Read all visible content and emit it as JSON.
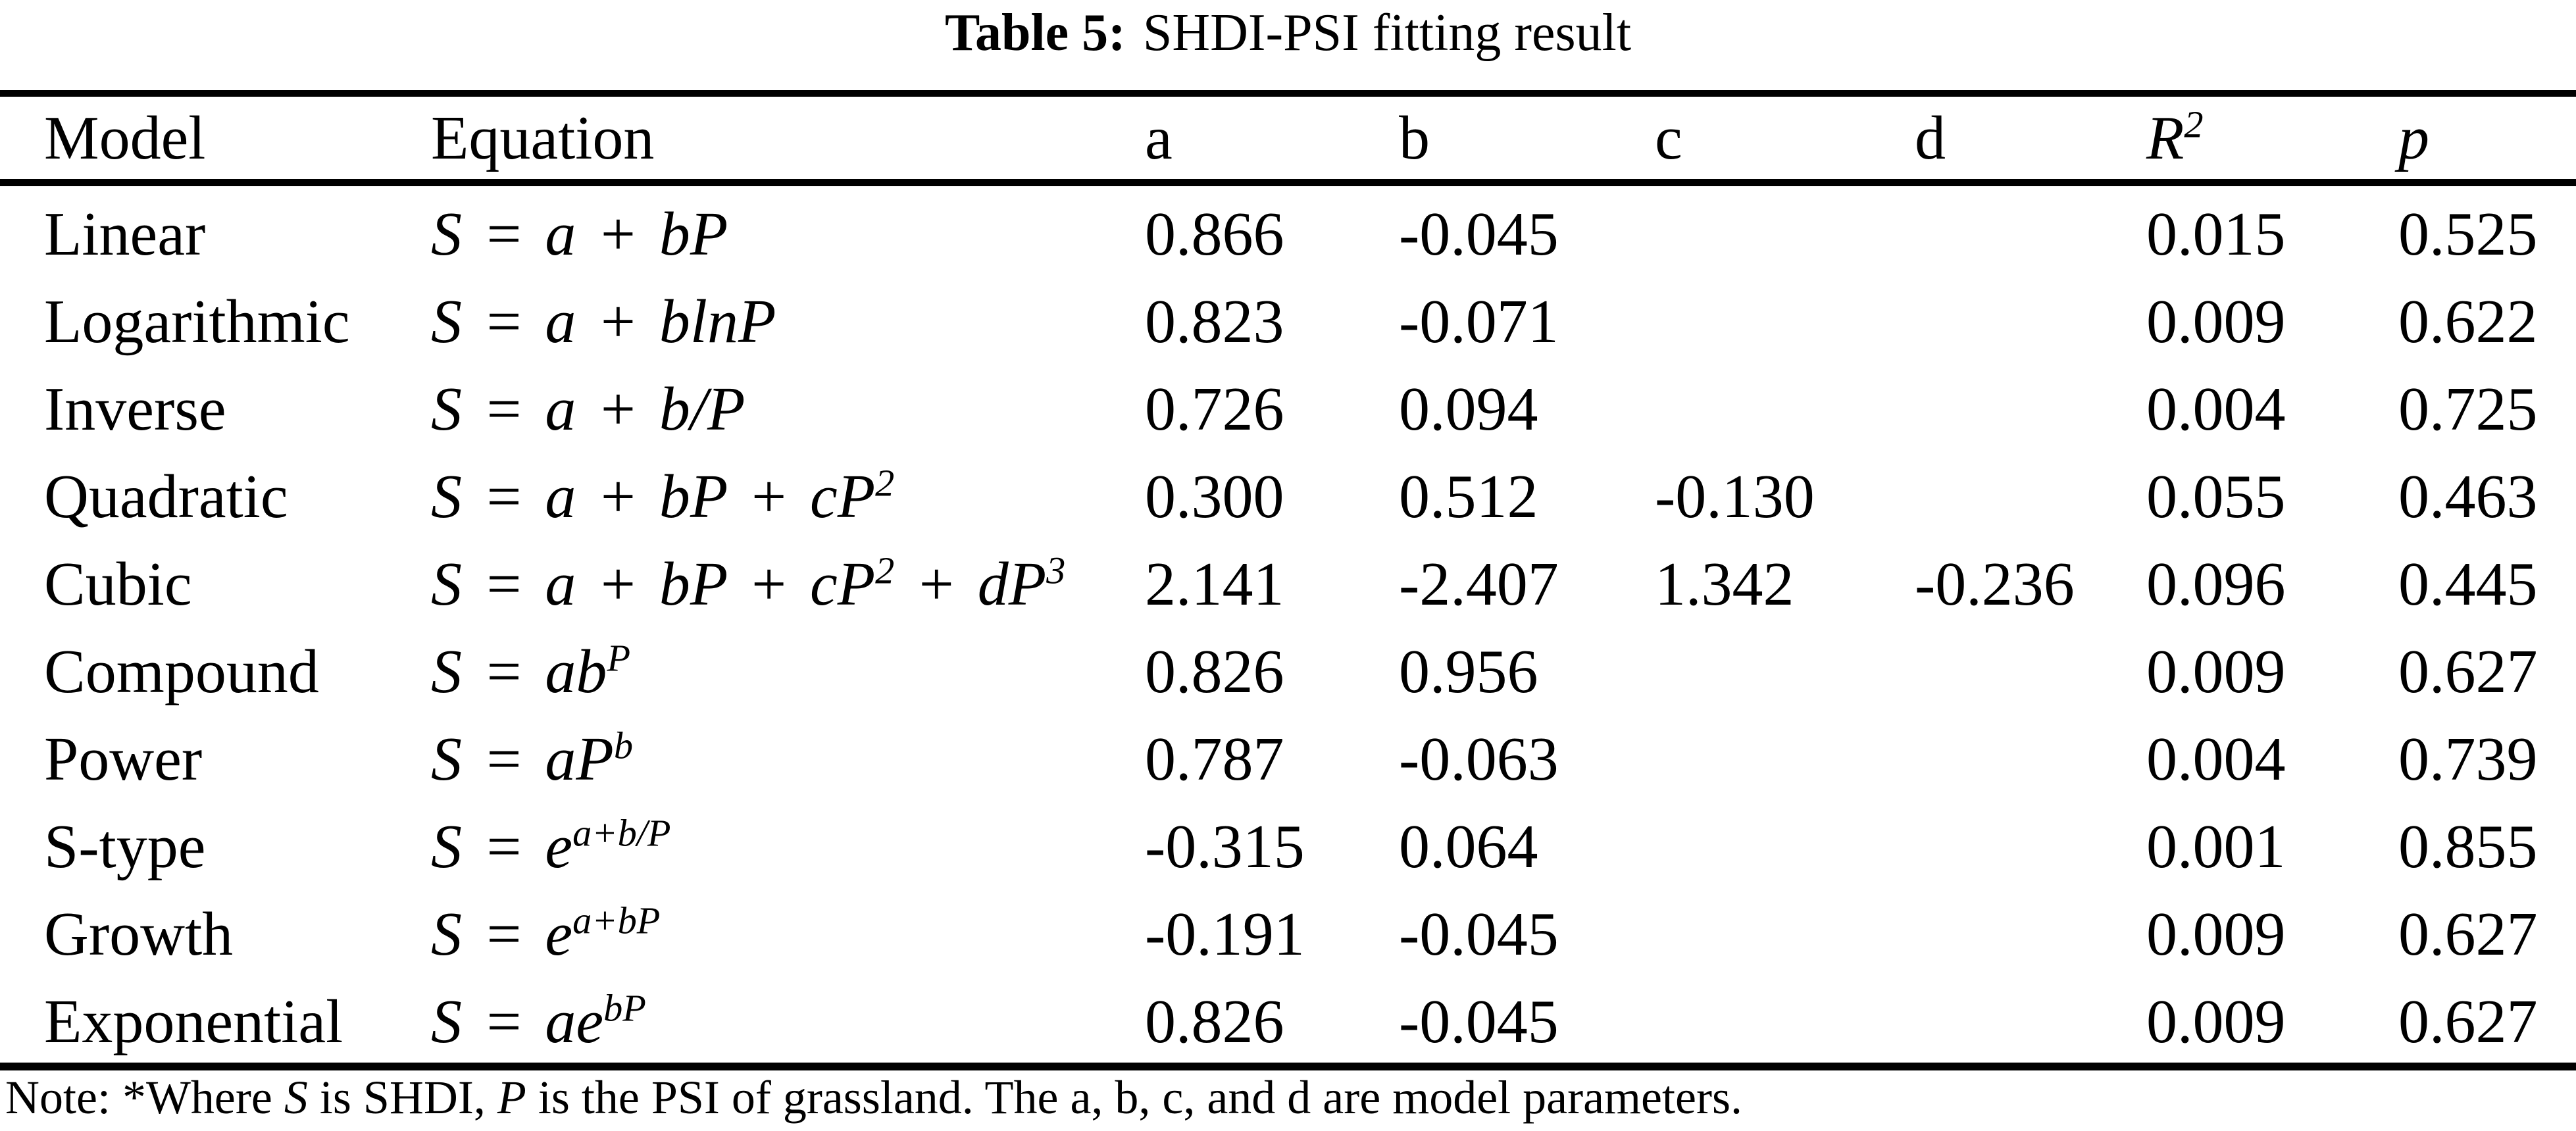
{
  "title": {
    "label": "Table 5:",
    "text": "SHDI-PSI fitting result"
  },
  "colors": {
    "text": "#000000",
    "background": "#ffffff"
  },
  "table": {
    "columns": {
      "model": "Model",
      "equation": "Equation",
      "a": "a",
      "b": "b",
      "c": "c",
      "d": "d",
      "r2": "R^{2}",
      "p": "p"
    },
    "rows": [
      {
        "model": "Linear",
        "equation": "S = a + bP",
        "a": "0.866",
        "b": "-0.045",
        "c": "",
        "d": "",
        "r2": "0.015",
        "p": "0.525"
      },
      {
        "model": "Logarithmic",
        "equation": "S = a + blnP",
        "a": "0.823",
        "b": "-0.071",
        "c": "",
        "d": "",
        "r2": "0.009",
        "p": "0.622"
      },
      {
        "model": "Inverse",
        "equation": "S = a + b/P",
        "a": "0.726",
        "b": "0.094",
        "c": "",
        "d": "",
        "r2": "0.004",
        "p": "0.725"
      },
      {
        "model": "Quadratic",
        "equation": "S = a + bP + cP^{2}",
        "a": "0.300",
        "b": "0.512",
        "c": "-0.130",
        "d": "",
        "r2": "0.055",
        "p": "0.463"
      },
      {
        "model": "Cubic",
        "equation": "S = a + bP + cP^{2} + dP^{3}",
        "a": "2.141",
        "b": "-2.407",
        "c": "1.342",
        "d": "-0.236",
        "r2": "0.096",
        "p": "0.445"
      },
      {
        "model": "Compound",
        "equation": "S = ab^{P}",
        "a": "0.826",
        "b": "0.956",
        "c": "",
        "d": "",
        "r2": "0.009",
        "p": "0.627"
      },
      {
        "model": "Power",
        "equation": "S = aP^{b}",
        "a": "0.787",
        "b": "-0.063",
        "c": "",
        "d": "",
        "r2": "0.004",
        "p": "0.739"
      },
      {
        "model": "S-type",
        "equation": "S = e^{a+b/P}",
        "a": "-0.315",
        "b": "0.064",
        "c": "",
        "d": "",
        "r2": "0.001",
        "p": "0.855"
      },
      {
        "model": "Growth",
        "equation": "S = e^{a+bP}",
        "a": "-0.191",
        "b": "-0.045",
        "c": "",
        "d": "",
        "r2": "0.009",
        "p": "0.627"
      },
      {
        "model": "Exponential",
        "equation": "S = ae^{bP}",
        "a": "0.826",
        "b": "-0.045",
        "c": "",
        "d": "",
        "r2": "0.009",
        "p": "0.627"
      }
    ]
  },
  "note": {
    "prefix": "Note: *Where ",
    "s_var": "S",
    "mid1": " is SHDI, ",
    "p_var": "P",
    "rest": " is the PSI of grassland. The a, b, c, and d are model parameters."
  }
}
